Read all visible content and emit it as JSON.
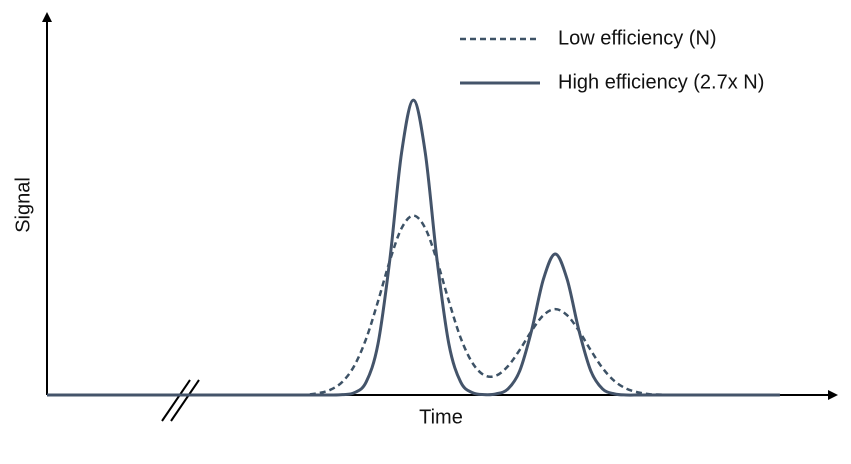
{
  "chart_data": {
    "type": "line",
    "x_label": "Time",
    "y_label": "Signal",
    "xlim": [
      0,
      100
    ],
    "ylim": [
      0,
      100
    ],
    "legend": "upper right",
    "x": [
      0,
      28.5,
      30,
      31.5,
      33,
      34.5,
      36,
      37.5,
      39,
      40.5,
      42,
      43.5,
      45,
      46.5,
      48,
      49.5,
      51,
      52.5,
      54,
      55.5,
      57,
      58.5,
      60,
      61.5,
      63,
      64.5,
      66,
      67.5,
      69,
      70.5,
      72,
      73.5,
      75,
      76.5,
      78,
      79.5,
      81,
      93
    ],
    "series": [
      {
        "name": "Low efficiency (N)",
        "color": "#3d5266",
        "dashed": true,
        "values": [
          0,
          0,
          0,
          0,
          0.1,
          0.5,
          1.4,
          3.5,
          7.7,
          14.8,
          24.6,
          35.3,
          43.9,
          47.2,
          43.9,
          35.3,
          24.7,
          15,
          8.4,
          5.2,
          5.1,
          7.6,
          11.9,
          16.9,
          21,
          22.6,
          21,
          16.9,
          11.8,
          7.1,
          3.7,
          1.7,
          0.7,
          0.2,
          0.1,
          0,
          0,
          0
        ]
      },
      {
        "name": "High efficiency (2.7x N)",
        "color": "#44546a",
        "dashed": false,
        "values": [
          0,
          0,
          0,
          0,
          0,
          0,
          0,
          0.1,
          0.6,
          3.4,
          13.4,
          35.5,
          63.8,
          77.6,
          63.8,
          35.5,
          13.4,
          3.4,
          0.6,
          0.1,
          0.3,
          1.6,
          6.4,
          17,
          30.5,
          37.1,
          30.5,
          17,
          6.4,
          1.6,
          0.3,
          0,
          0,
          0,
          0,
          0,
          0,
          0
        ]
      }
    ]
  }
}
